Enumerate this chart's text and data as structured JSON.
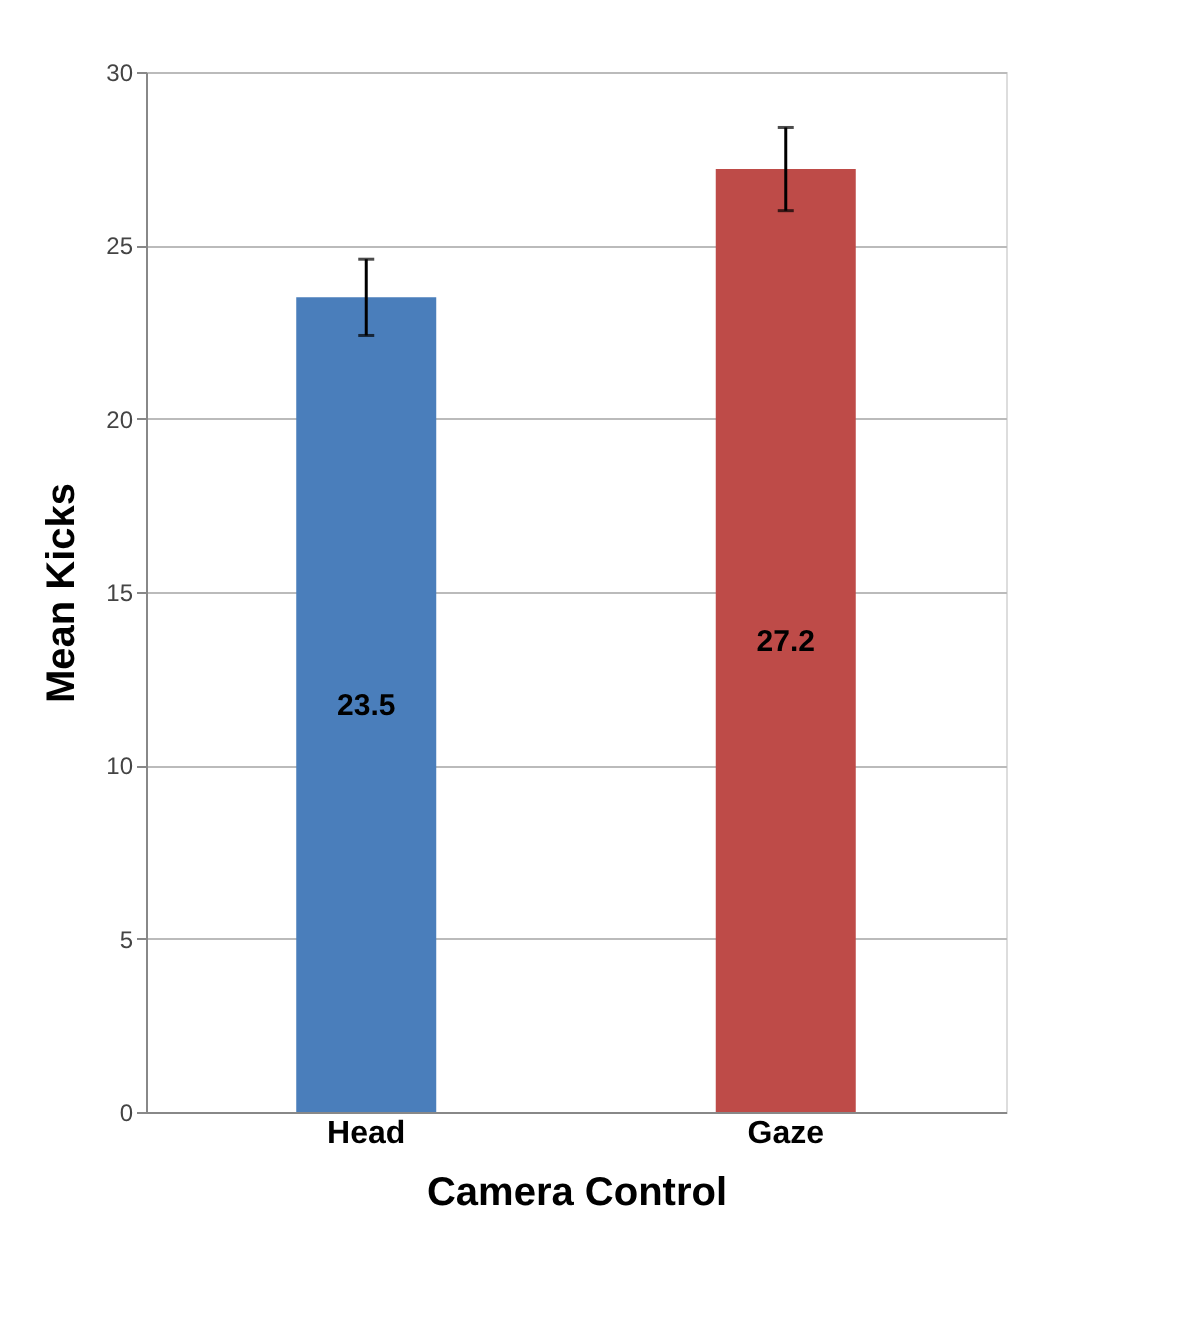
{
  "chart_data": {
    "type": "bar",
    "xlabel": "Camera Control",
    "ylabel": "Mean Kicks",
    "categories": [
      "Head",
      "Gaze"
    ],
    "values": [
      23.5,
      27.2
    ],
    "colors": [
      "#4a7ebb",
      "#be4b48"
    ],
    "errors": [
      1.1,
      1.2
    ],
    "ylim": [
      0,
      30
    ],
    "yticks": [
      0,
      5,
      10,
      15,
      20,
      25,
      30
    ],
    "grid": "y",
    "data_labels": true
  }
}
